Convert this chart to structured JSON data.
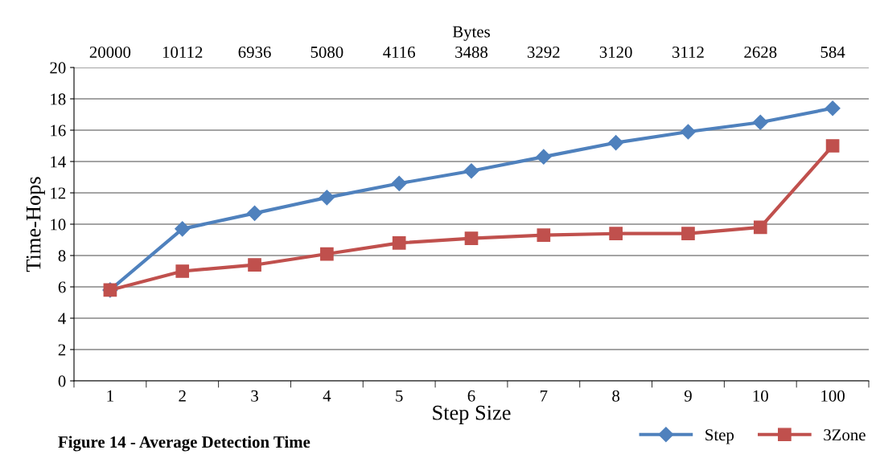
{
  "chart_data": {
    "type": "line",
    "title": "Figure 14 - Average Detection Time",
    "xlabel": "Step Size",
    "ylabel": "Time-Hops",
    "x2label": "Bytes",
    "categories": [
      "1",
      "2",
      "3",
      "4",
      "5",
      "6",
      "7",
      "8",
      "9",
      "10",
      "100"
    ],
    "annotations": [
      "20000",
      "10112",
      "6936",
      "5080",
      "4116",
      "3488",
      "3292",
      "3120",
      "3112",
      "2628",
      "584"
    ],
    "series": [
      {
        "name": "Step",
        "color": "#4f81bd",
        "marker": "diamond",
        "values": [
          5.8,
          9.7,
          10.7,
          11.7,
          12.6,
          13.4,
          14.3,
          15.2,
          15.9,
          16.5,
          17.4
        ]
      },
      {
        "name": "3Zone",
        "color": "#c0504d",
        "marker": "square",
        "values": [
          5.8,
          7.0,
          7.4,
          8.1,
          8.8,
          9.1,
          9.3,
          9.4,
          9.4,
          9.8,
          15.0
        ]
      }
    ],
    "ylim": [
      0,
      20
    ],
    "yticks": [
      0,
      2,
      4,
      6,
      8,
      10,
      12,
      14,
      16,
      18,
      20
    ],
    "grid": "y",
    "legend": "bottom right",
    "line_style": "solid"
  }
}
